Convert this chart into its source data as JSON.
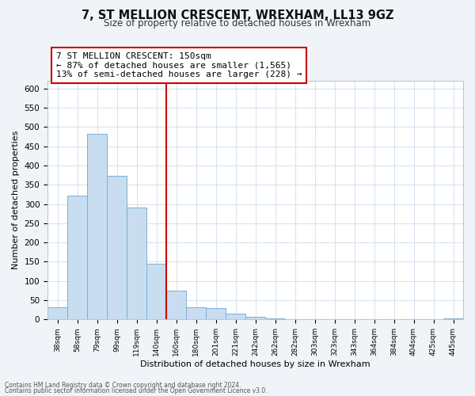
{
  "title": "7, ST MELLION CRESCENT, WREXHAM, LL13 9GZ",
  "subtitle": "Size of property relative to detached houses in Wrexham",
  "xlabel": "Distribution of detached houses by size in Wrexham",
  "ylabel": "Number of detached properties",
  "bar_color": "#c8ddf0",
  "bar_edge_color": "#7aafd4",
  "categories": [
    "38sqm",
    "58sqm",
    "79sqm",
    "99sqm",
    "119sqm",
    "140sqm",
    "160sqm",
    "180sqm",
    "201sqm",
    "221sqm",
    "242sqm",
    "262sqm",
    "282sqm",
    "303sqm",
    "323sqm",
    "343sqm",
    "364sqm",
    "384sqm",
    "404sqm",
    "425sqm",
    "445sqm"
  ],
  "values": [
    32,
    322,
    482,
    374,
    290,
    145,
    75,
    32,
    29,
    16,
    7,
    2,
    1,
    1,
    0,
    0,
    0,
    0,
    0,
    0,
    2
  ],
  "ylim": [
    0,
    620
  ],
  "yticks": [
    0,
    50,
    100,
    150,
    200,
    250,
    300,
    350,
    400,
    450,
    500,
    550,
    600
  ],
  "property_line_x": 5.5,
  "property_line_color": "#cc0000",
  "annotation_title": "7 ST MELLION CRESCENT: 150sqm",
  "annotation_line1": "← 87% of detached houses are smaller (1,565)",
  "annotation_line2": "13% of semi-detached houses are larger (228) →",
  "annotation_box_color": "#ffffff",
  "annotation_box_edge": "#cc0000",
  "footnote1": "Contains HM Land Registry data © Crown copyright and database right 2024.",
  "footnote2": "Contains public sector information licensed under the Open Government Licence v3.0.",
  "bg_color": "#f0f4f8",
  "plot_bg_color": "#ffffff",
  "grid_color": "#d8e4f0"
}
